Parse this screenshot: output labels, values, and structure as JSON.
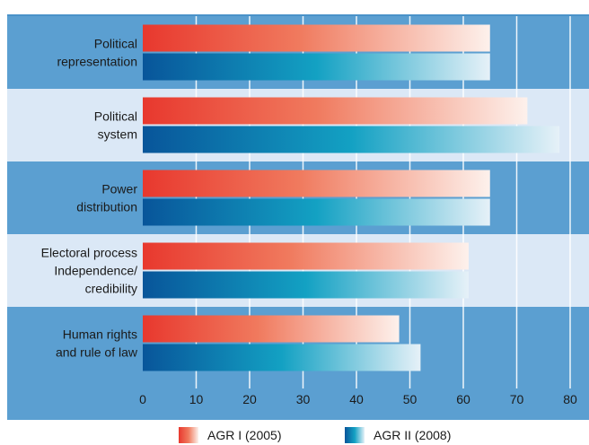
{
  "chart_data": {
    "type": "bar",
    "orientation": "horizontal",
    "categories": [
      [
        "Political",
        "representation"
      ],
      [
        "Political",
        "system"
      ],
      [
        "Power",
        "distribution"
      ],
      [
        "Electoral process",
        "Independence/",
        "credibility"
      ],
      [
        "Human rights",
        "and rule of law"
      ]
    ],
    "series": [
      {
        "name": "AGR I (2005)",
        "values": [
          65,
          72,
          65,
          61,
          48
        ]
      },
      {
        "name": "AGR II (2008)",
        "values": [
          65,
          78,
          65,
          61,
          52
        ]
      }
    ],
    "xlim": [
      0,
      80
    ],
    "xticks": [
      "0",
      "10",
      "20",
      "30",
      "40",
      "50",
      "60",
      "70",
      "80"
    ],
    "grid": true,
    "legend_position": "bottom-center",
    "colors": {
      "band_dark": "#5b9fd1",
      "band_light": "#dbe8f6",
      "frame": "#4a92c9",
      "series1_start": "#e8382e",
      "series2_start": "#08559a",
      "series2_mid": "#13a1c3"
    }
  }
}
